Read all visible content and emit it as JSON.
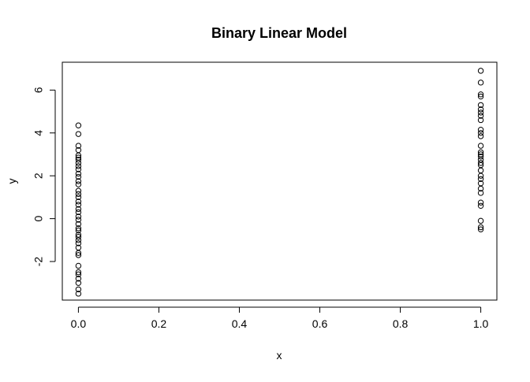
{
  "chart_data": {
    "type": "scatter",
    "title": "Binary Linear Model",
    "xlabel": "x",
    "ylabel": "y",
    "xlim": [
      -0.04,
      1.04
    ],
    "ylim": [
      -3.8,
      7.3
    ],
    "xticks": [
      0,
      0.2,
      0.4,
      0.6,
      0.8,
      1
    ],
    "xtick_labels": [
      "0.0",
      "0.2",
      "0.4",
      "0.6",
      "0.8",
      "1.0"
    ],
    "yticks": [
      -2,
      0,
      2,
      4,
      6
    ],
    "ytick_labels": [
      "-2",
      "0",
      "2",
      "4",
      "6"
    ],
    "grid": false,
    "legend": "none",
    "marker": "open-circle",
    "colors": {
      "points": "#000000",
      "axes": "#000000",
      "background": "#ffffff"
    },
    "series": [
      {
        "points": [
          {
            "x": 0,
            "y": 4.35
          },
          {
            "x": 0,
            "y": 3.95
          },
          {
            "x": 0,
            "y": 3.4
          },
          {
            "x": 0,
            "y": 3.2
          },
          {
            "x": 0,
            "y": 2.95
          },
          {
            "x": 0,
            "y": 2.85
          },
          {
            "x": 0,
            "y": 2.75
          },
          {
            "x": 0,
            "y": 2.6
          },
          {
            "x": 0,
            "y": 2.45
          },
          {
            "x": 0,
            "y": 2.3
          },
          {
            "x": 0,
            "y": 2.1
          },
          {
            "x": 0,
            "y": 1.95
          },
          {
            "x": 0,
            "y": 1.75
          },
          {
            "x": 0,
            "y": 1.6
          },
          {
            "x": 0,
            "y": 1.3
          },
          {
            "x": 0,
            "y": 1.15
          },
          {
            "x": 0,
            "y": 1.0
          },
          {
            "x": 0,
            "y": 0.8
          },
          {
            "x": 0,
            "y": 0.65
          },
          {
            "x": 0,
            "y": 0.45
          },
          {
            "x": 0,
            "y": 0.3
          },
          {
            "x": 0,
            "y": 0.1
          },
          {
            "x": 0,
            "y": -0.05
          },
          {
            "x": 0,
            "y": -0.25
          },
          {
            "x": 0,
            "y": -0.45
          },
          {
            "x": 0,
            "y": -0.55
          },
          {
            "x": 0,
            "y": -0.75
          },
          {
            "x": 0,
            "y": -0.85
          },
          {
            "x": 0,
            "y": -1.0
          },
          {
            "x": 0,
            "y": -1.15
          },
          {
            "x": 0,
            "y": -1.35
          },
          {
            "x": 0,
            "y": -1.6
          },
          {
            "x": 0,
            "y": -1.7
          },
          {
            "x": 0,
            "y": -2.2
          },
          {
            "x": 0,
            "y": -2.5
          },
          {
            "x": 0,
            "y": -2.6
          },
          {
            "x": 0,
            "y": -2.8
          },
          {
            "x": 0,
            "y": -3.0
          },
          {
            "x": 0,
            "y": -3.3
          },
          {
            "x": 0,
            "y": -3.5
          },
          {
            "x": 1,
            "y": 6.9
          },
          {
            "x": 1,
            "y": 6.35
          },
          {
            "x": 1,
            "y": 5.8
          },
          {
            "x": 1,
            "y": 5.7
          },
          {
            "x": 1,
            "y": 5.3
          },
          {
            "x": 1,
            "y": 5.1
          },
          {
            "x": 1,
            "y": 4.95
          },
          {
            "x": 1,
            "y": 4.8
          },
          {
            "x": 1,
            "y": 4.6
          },
          {
            "x": 1,
            "y": 4.15
          },
          {
            "x": 1,
            "y": 4.0
          },
          {
            "x": 1,
            "y": 3.85
          },
          {
            "x": 1,
            "y": 3.4
          },
          {
            "x": 1,
            "y": 3.1
          },
          {
            "x": 1,
            "y": 3.0
          },
          {
            "x": 1,
            "y": 2.9
          },
          {
            "x": 1,
            "y": 2.75
          },
          {
            "x": 1,
            "y": 2.6
          },
          {
            "x": 1,
            "y": 2.5
          },
          {
            "x": 1,
            "y": 2.25
          },
          {
            "x": 1,
            "y": 2.0
          },
          {
            "x": 1,
            "y": 1.85
          },
          {
            "x": 1,
            "y": 1.65
          },
          {
            "x": 1,
            "y": 1.4
          },
          {
            "x": 1,
            "y": 1.2
          },
          {
            "x": 1,
            "y": 0.75
          },
          {
            "x": 1,
            "y": 0.6
          },
          {
            "x": 1,
            "y": -0.1
          },
          {
            "x": 1,
            "y": -0.4
          },
          {
            "x": 1,
            "y": -0.5
          }
        ]
      }
    ]
  }
}
